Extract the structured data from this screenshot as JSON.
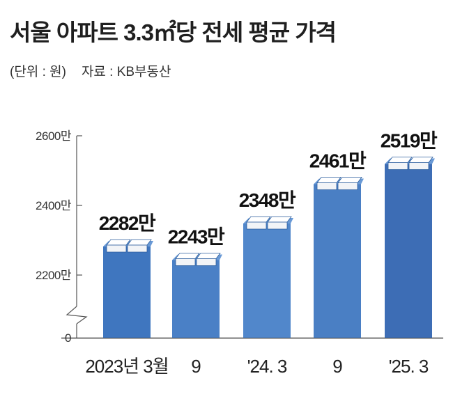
{
  "header": {
    "title": "서울 아파트 3.3㎡당 전세 평균 가격",
    "unit": "(단위 : 원)",
    "source": "자료 : KB부동산"
  },
  "chart_data": {
    "type": "bar",
    "title": "서울 아파트 3.3㎡당 전세 평균 가격",
    "unit_note": "(단위 : 원)",
    "source": "자료 : KB부동산",
    "categories": [
      "2023년 3월",
      "9",
      "'24. 3",
      "9",
      "'25. 3"
    ],
    "values": [
      2282,
      2243,
      2348,
      2461,
      2519
    ],
    "value_labels": [
      "2282만",
      "2243만",
      "2348만",
      "2461만",
      "2519만"
    ],
    "y_ticks": [
      {
        "value": 2600,
        "label": "2600만"
      },
      {
        "value": 2400,
        "label": "2400만"
      },
      {
        "value": 2200,
        "label": "2200만"
      },
      {
        "value": 0,
        "label": "0"
      }
    ],
    "ylim": [
      2200,
      2600
    ],
    "axis_break": true,
    "grid": false,
    "colors": [
      "#3f76bf",
      "#4a80c6",
      "#5187cb",
      "#4a7fc4",
      "#3d6db5"
    ],
    "top_color": "#6a9ad6",
    "bill_color": "#ffffff"
  }
}
